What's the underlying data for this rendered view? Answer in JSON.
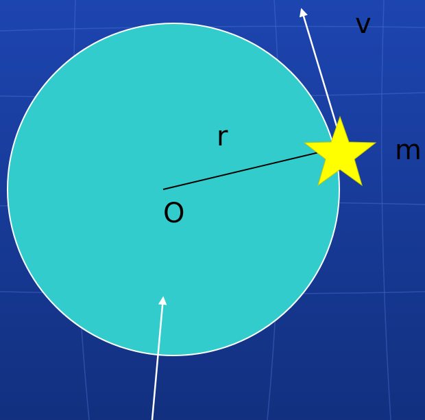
{
  "labels": {
    "velocity": "v",
    "radius": "r",
    "mass": "m",
    "center": "O"
  }
}
